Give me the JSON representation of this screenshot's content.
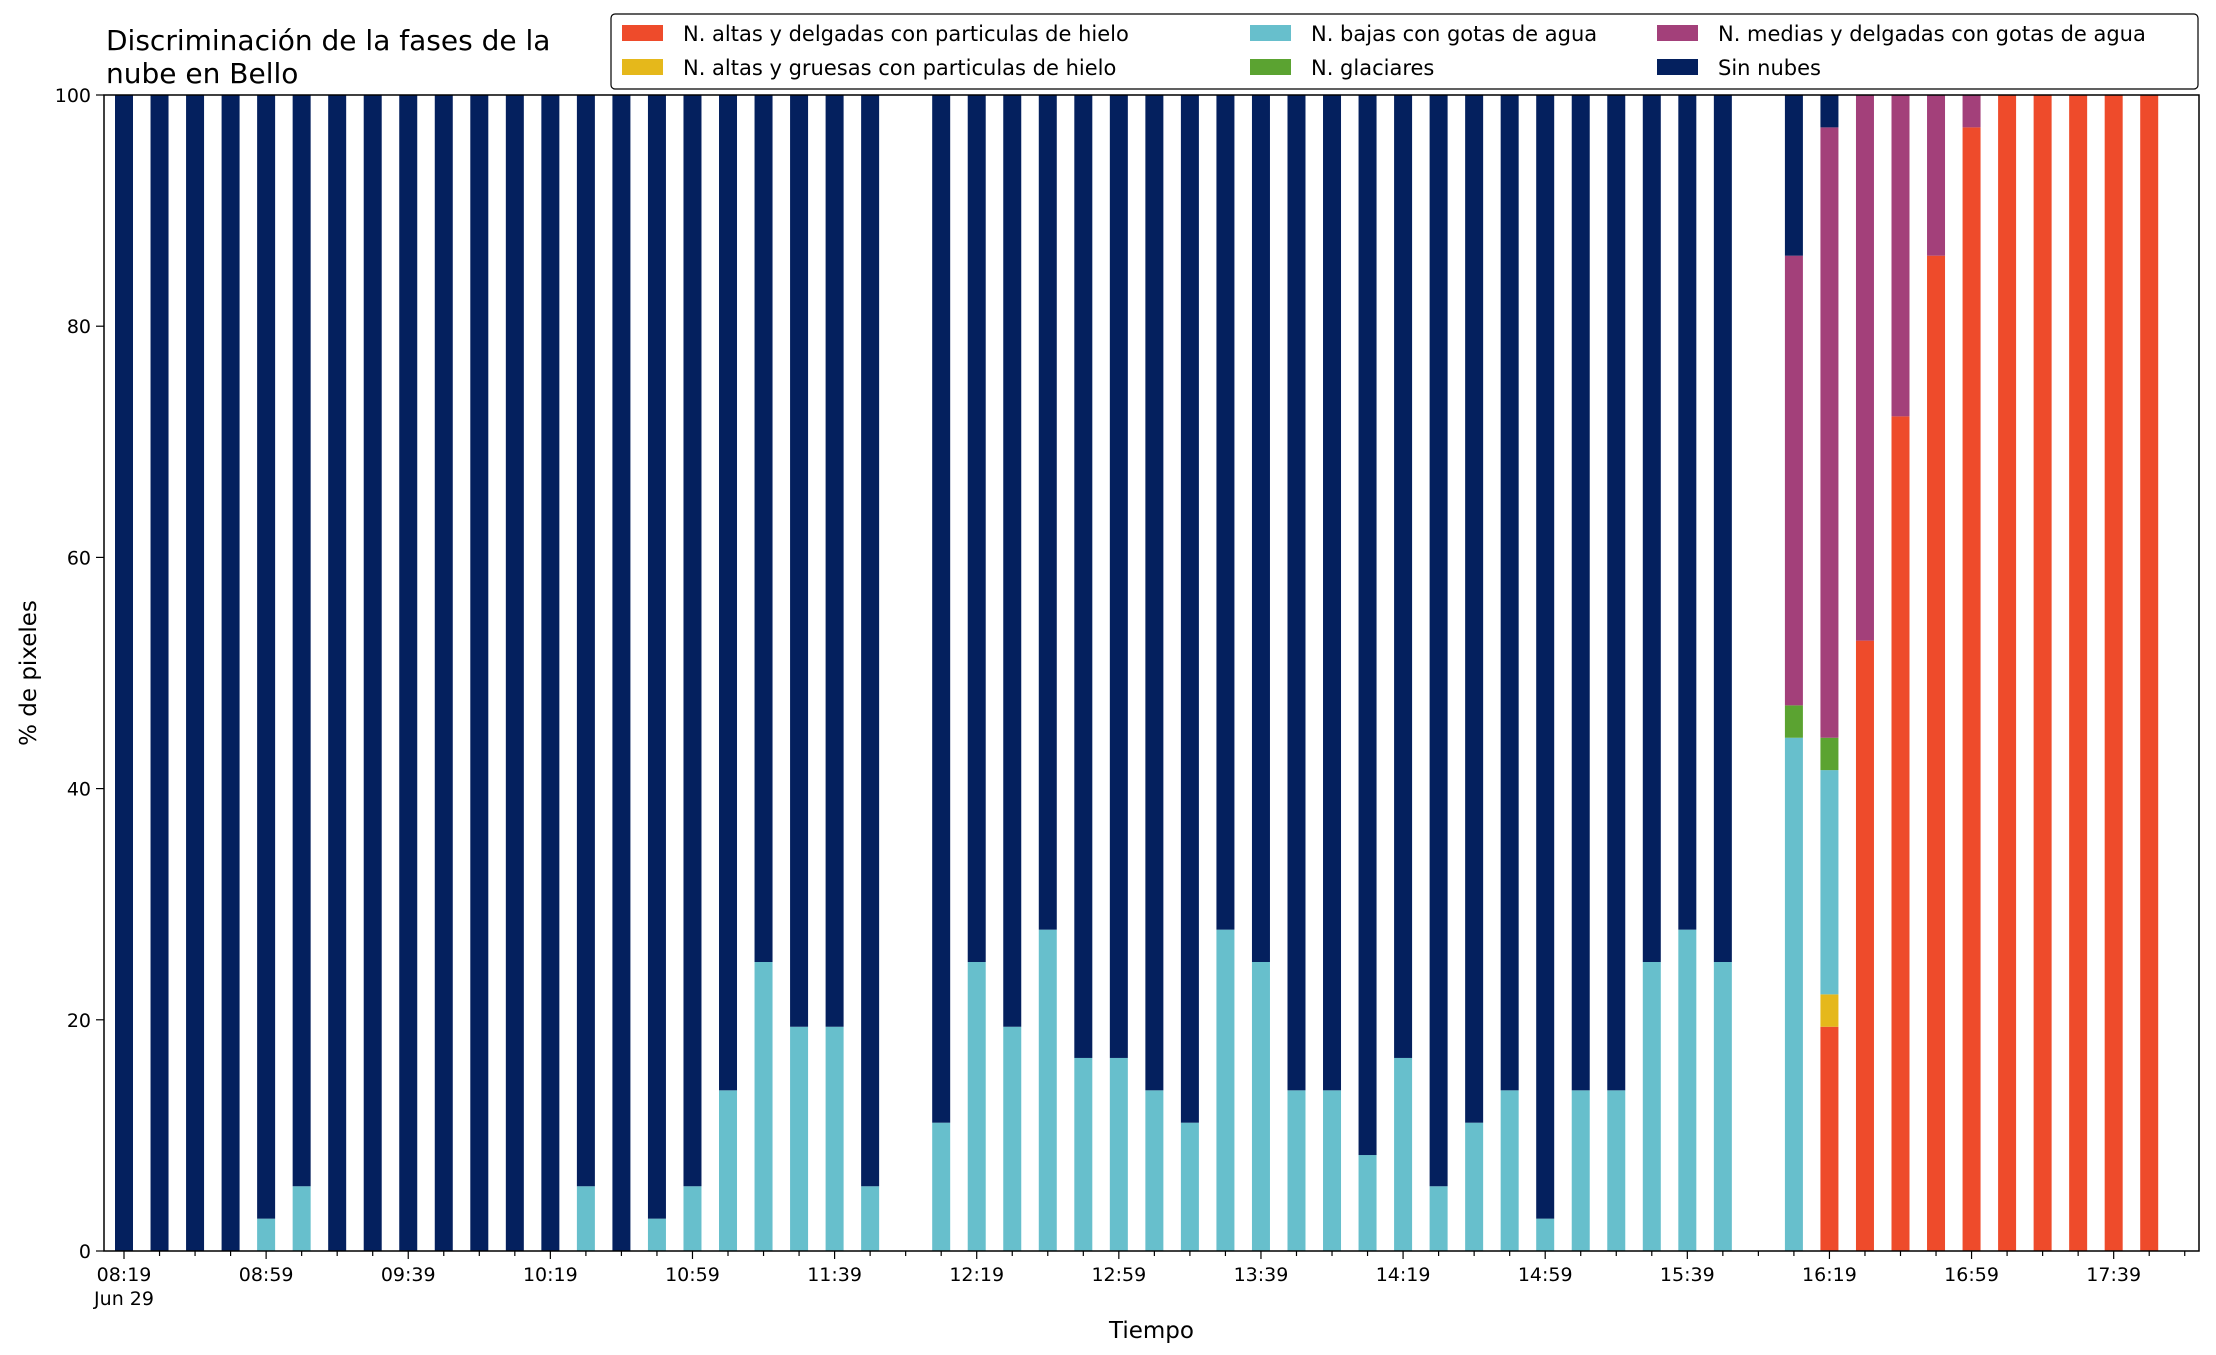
{
  "chart_data": {
    "type": "bar",
    "stacked": true,
    "title": "Discriminación de la fases de la\nnube en Bello",
    "xlabel": "Tiempo",
    "ylabel": "% de pixeles",
    "ylim": [
      0,
      100
    ],
    "yticks": [
      0,
      20,
      40,
      60,
      80,
      100
    ],
    "xtick_labels": [
      "08:19",
      "08:59",
      "09:39",
      "10:19",
      "10:59",
      "11:39",
      "12:19",
      "12:59",
      "13:39",
      "14:19",
      "14:59",
      "15:39",
      "16:19",
      "16:59",
      "17:39"
    ],
    "xtick_sublabel": "Jun 29",
    "grid": false,
    "legend_position": "top-right",
    "legend_columns": 3,
    "categories": [
      "08:19",
      "08:29",
      "08:39",
      "08:49",
      "08:59",
      "09:09",
      "09:19",
      "09:29",
      "09:39",
      "09:49",
      "09:59",
      "10:09",
      "10:19",
      "10:29",
      "10:39",
      "10:49",
      "10:59",
      "11:09",
      "11:19",
      "11:29",
      "11:39",
      "11:49",
      "11:59",
      "12:09",
      "12:19",
      "12:29",
      "12:39",
      "12:49",
      "12:59",
      "13:09",
      "13:19",
      "13:29",
      "13:39",
      "13:49",
      "13:59",
      "14:09",
      "14:19",
      "14:29",
      "14:39",
      "14:49",
      "14:59",
      "15:09",
      "15:19",
      "15:29",
      "15:39",
      "15:49",
      "15:59",
      "16:09",
      "16:19",
      "16:29",
      "16:39",
      "16:49",
      "16:59",
      "17:09",
      "17:19",
      "17:29",
      "17:39",
      "17:49"
    ],
    "series": [
      {
        "name": "N. altas y delgadas con particulas de hielo",
        "color": "#ee4b2b",
        "values": [
          0,
          0,
          0,
          0,
          0,
          0,
          0,
          0,
          0,
          0,
          0,
          0,
          0,
          0,
          0,
          0,
          0,
          0,
          0,
          0,
          0,
          0,
          0,
          0,
          0,
          0,
          0,
          0,
          0,
          0,
          0,
          0,
          0,
          0,
          0,
          0,
          0,
          0,
          0,
          0,
          0,
          0,
          0,
          0,
          0,
          0,
          0,
          0,
          19.4,
          52.8,
          72.2,
          86.1,
          97.2,
          100,
          100,
          100,
          100,
          100
        ]
      },
      {
        "name": "N. altas y gruesas con particulas de hielo",
        "color": "#e5b81b",
        "values": [
          0,
          0,
          0,
          0,
          0,
          0,
          0,
          0,
          0,
          0,
          0,
          0,
          0,
          0,
          0,
          0,
          0,
          0,
          0,
          0,
          0,
          0,
          0,
          0,
          0,
          0,
          0,
          0,
          0,
          0,
          0,
          0,
          0,
          0,
          0,
          0,
          0,
          0,
          0,
          0,
          0,
          0,
          0,
          0,
          0,
          0,
          0,
          0,
          2.8,
          0,
          0,
          0,
          0,
          0,
          0,
          0,
          0,
          0
        ]
      },
      {
        "name": "N. bajas con gotas de agua",
        "color": "#67bfcc",
        "values": [
          0,
          0,
          0,
          0,
          2.8,
          5.6,
          0,
          0,
          0,
          0,
          0,
          0,
          0,
          5.6,
          0,
          2.8,
          5.6,
          13.9,
          25,
          19.4,
          19.4,
          5.6,
          0,
          11.1,
          25,
          19.4,
          27.8,
          16.7,
          16.7,
          13.9,
          11.1,
          27.8,
          25,
          13.9,
          13.9,
          8.3,
          16.7,
          5.6,
          11.1,
          13.9,
          2.8,
          13.9,
          13.9,
          25,
          27.8,
          25,
          0,
          44.4,
          19.4,
          0,
          0,
          0,
          0,
          0,
          0,
          0,
          0,
          0
        ]
      },
      {
        "name": "N. glaciares",
        "color": "#5ba331",
        "values": [
          0,
          0,
          0,
          0,
          0,
          0,
          0,
          0,
          0,
          0,
          0,
          0,
          0,
          0,
          0,
          0,
          0,
          0,
          0,
          0,
          0,
          0,
          0,
          0,
          0,
          0,
          0,
          0,
          0,
          0,
          0,
          0,
          0,
          0,
          0,
          0,
          0,
          0,
          0,
          0,
          0,
          0,
          0,
          0,
          0,
          0,
          0,
          2.8,
          2.8,
          0,
          0,
          0,
          0,
          0,
          0,
          0,
          0,
          0
        ]
      },
      {
        "name": "N. medias y delgadas con gotas de agua",
        "color": "#a3407a",
        "values": [
          0,
          0,
          0,
          0,
          0,
          0,
          0,
          0,
          0,
          0,
          0,
          0,
          0,
          0,
          0,
          0,
          0,
          0,
          0,
          0,
          0,
          0,
          0,
          0,
          0,
          0,
          0,
          0,
          0,
          0,
          0,
          0,
          0,
          0,
          0,
          0,
          0,
          0,
          0,
          0,
          0,
          0,
          0,
          0,
          0,
          0,
          0,
          38.9,
          52.8,
          47.2,
          27.8,
          13.9,
          2.8,
          0,
          0,
          0,
          0,
          0
        ]
      },
      {
        "name": "Sin nubes",
        "color": "#04205e",
        "values": [
          100,
          100,
          100,
          100,
          97.2,
          94.4,
          100,
          100,
          100,
          100,
          100,
          100,
          100,
          94.4,
          100,
          97.2,
          94.4,
          86.1,
          75,
          80.6,
          80.6,
          94.4,
          0,
          88.9,
          75,
          80.6,
          72.2,
          83.3,
          83.3,
          86.1,
          88.9,
          72.2,
          75,
          86.1,
          86.1,
          91.7,
          83.3,
          94.4,
          88.9,
          86.1,
          97.2,
          86.1,
          86.1,
          75,
          72.2,
          75,
          0,
          13.9,
          2.8,
          0,
          0,
          0,
          0,
          0,
          0,
          0,
          0,
          0
        ]
      }
    ]
  }
}
